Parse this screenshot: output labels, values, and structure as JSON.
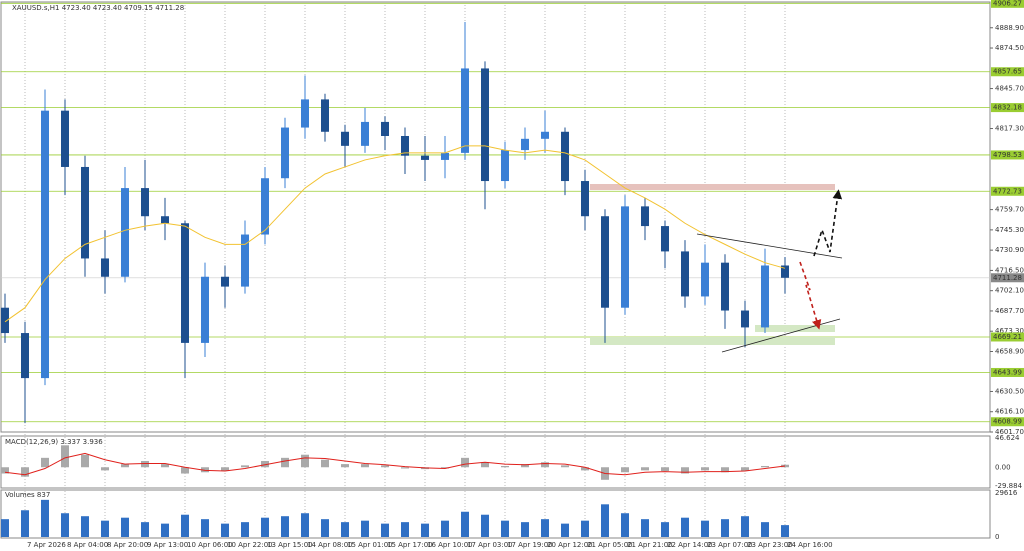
{
  "chart_data": {
    "type": "candlestick",
    "header": "XAUUSD.s,H1  4723.40 4723.40 4709.15 4711.28",
    "categories": [
      null,
      "7 Apr 2026",
      null,
      "8 Apr 04:00",
      null,
      "8 Apr 20:00",
      null,
      "9 Apr 13:00",
      null,
      "10 Apr 06:00",
      null,
      "10 Apr 22:00",
      null,
      "13 Apr 15:00",
      null,
      "14 Apr 08:00",
      null,
      "15 Apr 01:00",
      null,
      "15 Apr 17:00",
      null,
      "16 Apr 10:00",
      null,
      "17 Apr 03:00",
      null,
      "17 Apr 19:00",
      null,
      "20 Apr 12:00",
      null,
      "21 Apr 05:00",
      null,
      "21 Apr 21:00",
      null,
      "22 Apr 14:00",
      null,
      "23 Apr 07:00",
      null,
      "23 Apr 23:00",
      null,
      "24 Apr 16:00"
    ],
    "open": [
      4690,
      4672,
      4640,
      4830,
      4790,
      4725,
      4712,
      4775,
      4755,
      4750,
      4665,
      4712,
      4705,
      4742,
      4782,
      4818,
      4838,
      4815,
      4805,
      4822,
      4812,
      4798,
      4795,
      4800,
      4860,
      4780,
      4802,
      4810,
      4815,
      4780,
      4755,
      4690,
      4762,
      4748,
      4730,
      4698,
      4722,
      4688,
      4676,
      4720
    ],
    "high": [
      4700,
      4680,
      4845,
      4838,
      4798,
      4745,
      4790,
      4795,
      4768,
      4752,
      4722,
      4720,
      4752,
      4790,
      4825,
      4855,
      4842,
      4820,
      4832,
      4826,
      4818,
      4812,
      4812,
      4893,
      4865,
      4808,
      4818,
      4830,
      4818,
      4788,
      4760,
      4770,
      4768,
      4752,
      4738,
      4735,
      4728,
      4695,
      4732,
      4726
    ],
    "low": [
      4665,
      4608,
      4635,
      4770,
      4712,
      4700,
      4708,
      4745,
      4738,
      4640,
      4655,
      4690,
      4700,
      4735,
      4775,
      4810,
      4808,
      4790,
      4800,
      4802,
      4785,
      4780,
      4782,
      4795,
      4760,
      4775,
      4795,
      4800,
      4770,
      4745,
      4665,
      4685,
      4738,
      4718,
      4690,
      4692,
      4675,
      4662,
      4672,
      4700
    ],
    "close": [
      4672,
      4640,
      4830,
      4790,
      4725,
      4712,
      4775,
      4755,
      4750,
      4665,
      4712,
      4705,
      4742,
      4782,
      4818,
      4838,
      4815,
      4805,
      4822,
      4812,
      4798,
      4795,
      4800,
      4860,
      4780,
      4802,
      4810,
      4815,
      4780,
      4755,
      4690,
      4762,
      4748,
      4730,
      4698,
      4722,
      4688,
      4676,
      4720,
      4711.28
    ],
    "up_color": "#3a7fd5",
    "down_color": "#1d4f8f",
    "ylim": [
      4601.7,
      4907.2
    ],
    "yticks": [
      {
        "value": 4888.9,
        "label": "4888.90"
      },
      {
        "value": 4874.5,
        "label": "4874.50"
      },
      {
        "value": 4845.7,
        "label": "4845.70"
      },
      {
        "value": 4817.3,
        "label": "4817.30"
      },
      {
        "value": 4759.7,
        "label": "4759.70"
      },
      {
        "value": 4745.3,
        "label": "4745.30"
      },
      {
        "value": 4730.9,
        "label": "4730.90"
      },
      {
        "value": 4716.5,
        "label": "4716.50"
      },
      {
        "value": 4702.1,
        "label": "4702.10"
      },
      {
        "value": 4687.7,
        "label": "4687.70"
      },
      {
        "value": 4673.3,
        "label": "4673.30"
      },
      {
        "value": 4658.9,
        "label": "4658.90"
      },
      {
        "value": 4630.5,
        "label": "4630.50"
      },
      {
        "value": 4616.1,
        "label": "4616.10"
      },
      {
        "value": 4601.7,
        "label": "4601.70"
      }
    ],
    "levels": [
      4906.27,
      4857.65,
      4832.18,
      4798.53,
      4772.73,
      4669.21,
      4643.99,
      4608.99
    ],
    "level_color": "#9acd32",
    "last_price": 4711.28,
    "ma": {
      "color": "#f2c230",
      "values": [
        4680,
        4690,
        4710,
        4725,
        4735,
        4740,
        4745,
        4748,
        4750,
        4748,
        4740,
        4735,
        4735,
        4745,
        4760,
        4775,
        4785,
        4790,
        4795,
        4798,
        4800,
        4800,
        4800,
        4805,
        4805,
        4802,
        4800,
        4802,
        4800,
        4795,
        4785,
        4775,
        4768,
        4760,
        4750,
        4742,
        4735,
        4728,
        4722,
        4718
      ]
    },
    "macd": {
      "label": "MACD(12,26,9) 3.337 3.936",
      "histogram": {
        "color": "#a9a9a9",
        "values": [
          -10,
          -15,
          15,
          35,
          20,
          -5,
          5,
          10,
          5,
          -10,
          -8,
          -6,
          3,
          10,
          15,
          20,
          12,
          5,
          5,
          3,
          -2,
          -3,
          -2,
          15,
          8,
          2,
          5,
          8,
          3,
          -5,
          -20,
          -8,
          -5,
          -6,
          -10,
          -5,
          -8,
          -6,
          2,
          4
        ]
      },
      "signal": {
        "color": "#e0201b",
        "values": [
          -8,
          -12,
          -2,
          15,
          22,
          12,
          5,
          6,
          6,
          0,
          -5,
          -6,
          -2,
          4,
          10,
          15,
          14,
          10,
          6,
          4,
          1,
          -1,
          -2,
          5,
          8,
          5,
          4,
          6,
          5,
          0,
          -10,
          -12,
          -8,
          -7,
          -8,
          -7,
          -7,
          -6,
          -2,
          2
        ]
      },
      "ylim": [
        -29.884,
        46.624
      ],
      "yticks": [
        46.624,
        {
          "value": 0,
          "label": "0.00"
        },
        -29.884
      ]
    },
    "volume": {
      "label": "Volumes 837",
      "color": "#2f6fc4",
      "values": [
        12000,
        18000,
        25000,
        16000,
        14000,
        11000,
        13000,
        10000,
        9000,
        15000,
        12000,
        9000,
        10000,
        13000,
        14000,
        16000,
        12000,
        10000,
        11000,
        9000,
        10000,
        9000,
        11000,
        17000,
        15000,
        11000,
        10000,
        12000,
        9000,
        11000,
        22000,
        16000,
        12000,
        10000,
        13000,
        11000,
        12000,
        14000,
        10000,
        8000
      ],
      "ylim": [
        0,
        29616
      ],
      "yticks": [
        29616,
        0
      ]
    }
  }
}
